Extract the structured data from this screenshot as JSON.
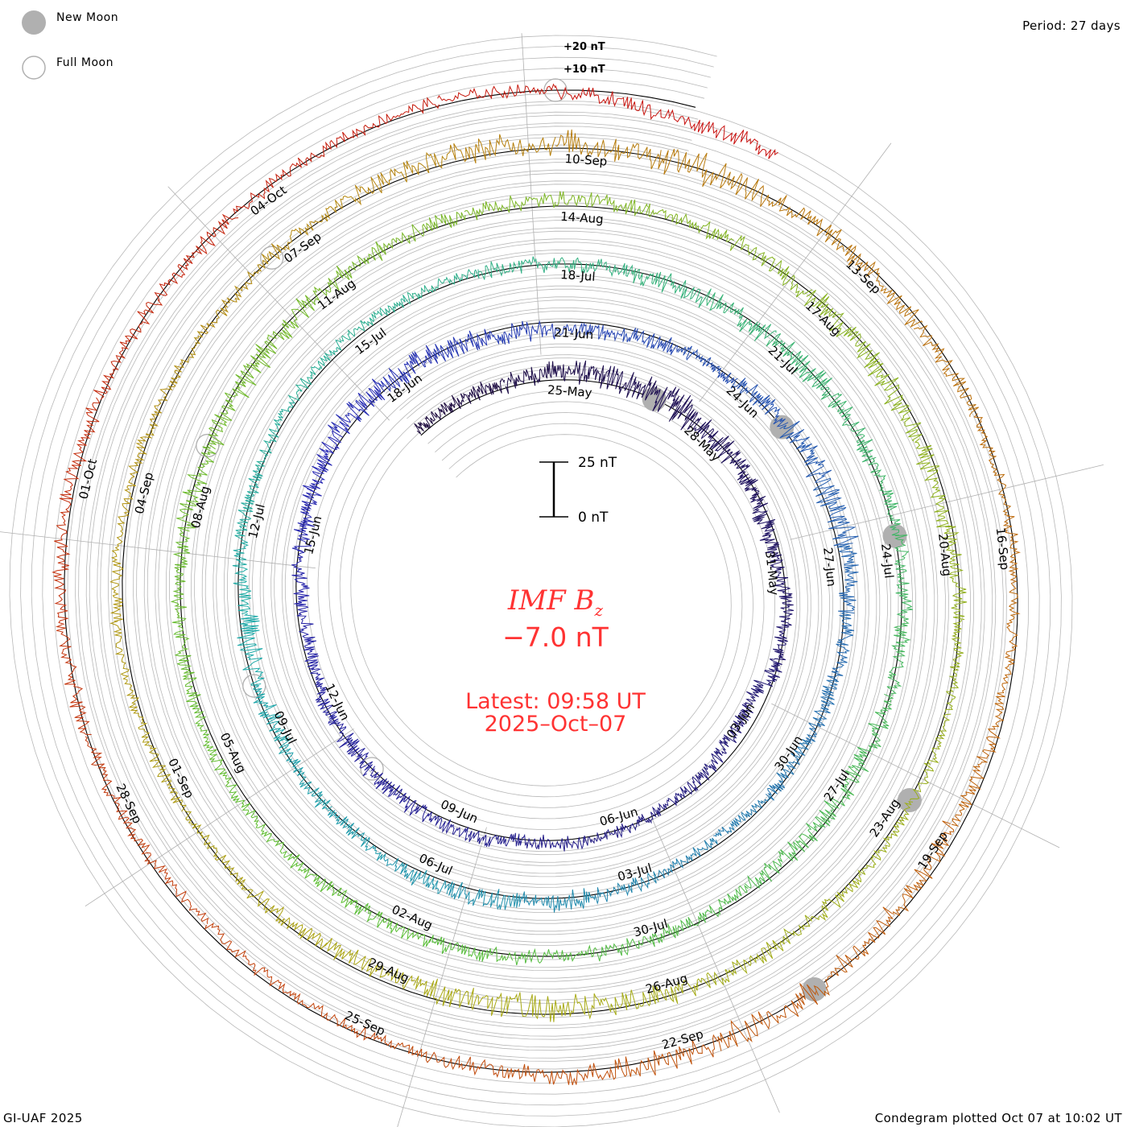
{
  "legend": {
    "new_moon": "New Moon",
    "full_moon": "Full Moon"
  },
  "period": "Period: 27 days",
  "footer_left": "GI-UAF 2025",
  "footer_right": "Condegram plotted Oct 07 at 10:02 UT",
  "scale_bar": {
    "top_label": "25 nT",
    "bottom_label": "0 nT"
  },
  "ring_labels": {
    "plus20": "+20 nT",
    "plus10": "+10 nT"
  },
  "title": {
    "main": "IMF B",
    "sub": "z",
    "value": "−7.0 nT",
    "latest": "Latest: 09:58 UT",
    "date": "2025–Oct–07"
  },
  "colors": {
    "text_red": "#ff3333",
    "grid": "#b0b0b0",
    "moon": "#b0b0b0"
  },
  "chart_data": {
    "type": "line",
    "subtype": "spiral-condegram",
    "title": "IMF Bz",
    "period_days": 27,
    "start_date": "25-May",
    "end_date": "07-Oct",
    "units": "nT",
    "latest_value": -7.0,
    "grid_ring_step_nT": 5,
    "date_labels": [
      "25-May",
      "28-May",
      "31-May",
      "03-Jun",
      "06-Jun",
      "09-Jun",
      "12-Jun",
      "15-Jun",
      "18-Jun",
      "21-Jun",
      "24-Jun",
      "27-Jun",
      "30-Jun",
      "03-Jul",
      "06-Jul",
      "09-Jul",
      "12-Jul",
      "15-Jul",
      "18-Jul",
      "21-Jul",
      "24-Jul",
      "27-Jul",
      "30-Jul",
      "02-Aug",
      "05-Aug",
      "08-Aug",
      "11-Aug",
      "14-Aug",
      "17-Aug",
      "20-Aug",
      "23-Aug",
      "26-Aug",
      "29-Aug",
      "01-Sep",
      "04-Sep",
      "07-Sep",
      "10-Sep",
      "13-Sep",
      "16-Sep",
      "19-Sep",
      "22-Sep",
      "25-Sep",
      "28-Sep",
      "01-Oct",
      "04-Oct"
    ],
    "new_moon_day_offsets": [
      2,
      31,
      60,
      90,
      119
    ],
    "full_moon_day_offsets": [
      17,
      46,
      76,
      105,
      135
    ],
    "daily_bz_start_offset": -3,
    "daily_bz": [
      2,
      3,
      2,
      4,
      3,
      2,
      1,
      0,
      -2,
      -3,
      0,
      -1,
      -6,
      -4,
      -2,
      0,
      2,
      1,
      3,
      2,
      1,
      0,
      -2,
      -3,
      -1,
      1,
      3,
      2,
      0,
      -2,
      -4,
      -3,
      -1,
      0,
      2,
      3,
      4,
      2,
      0,
      -1,
      -2,
      -3,
      -1,
      1,
      2,
      3,
      2,
      1,
      -1,
      -2,
      -3,
      0,
      1,
      2,
      3,
      2,
      1,
      0,
      -1,
      -2,
      -1,
      0,
      1,
      2,
      1,
      0,
      -1,
      -2,
      -3,
      -1,
      0,
      1,
      2,
      1,
      2,
      3,
      2,
      1,
      0,
      -1,
      -2,
      0,
      1,
      2,
      3,
      2,
      1,
      -1,
      -2,
      -3,
      -2,
      0,
      1,
      2,
      1,
      0,
      -1,
      -2,
      -3,
      -4,
      -3,
      -1,
      0,
      2,
      3,
      2,
      1,
      0,
      1,
      2,
      3,
      2,
      1,
      0,
      -1,
      -2,
      -1,
      0,
      -2,
      -3,
      -4,
      -2,
      0,
      1,
      2,
      0,
      -1,
      -2,
      -3,
      -1,
      0,
      1,
      2,
      1,
      0,
      -1,
      1,
      2,
      0,
      -7
    ],
    "noise_amplitude_nT": [
      4,
      4,
      5,
      6,
      7,
      8,
      6,
      5,
      5,
      4,
      4,
      5,
      4,
      4,
      3,
      3,
      4,
      4,
      4,
      5,
      5,
      4,
      4,
      4,
      5,
      5,
      6,
      6,
      5,
      5,
      4,
      4,
      4,
      5,
      6,
      7,
      5,
      4,
      4,
      4,
      3,
      3,
      4,
      5,
      5,
      5,
      4,
      4,
      5,
      6,
      4,
      4,
      3,
      3,
      3,
      3,
      4,
      4,
      5,
      6,
      6,
      5,
      4,
      4,
      4,
      5,
      5,
      5,
      4,
      4,
      4,
      4,
      4,
      4,
      3,
      3,
      4,
      4,
      5,
      6,
      6,
      5,
      4,
      4,
      4,
      4,
      5,
      6,
      6,
      5,
      4,
      3,
      3,
      3,
      4,
      5,
      6,
      7,
      6,
      5,
      4,
      3,
      3,
      3,
      3,
      3,
      3,
      4,
      4,
      5,
      6,
      7,
      8,
      6,
      5,
      4,
      3,
      3,
      3,
      4,
      5,
      6,
      7,
      6,
      5,
      4,
      3,
      3,
      3,
      3,
      4,
      4,
      4,
      4,
      4,
      3,
      3,
      3,
      4
    ]
  }
}
